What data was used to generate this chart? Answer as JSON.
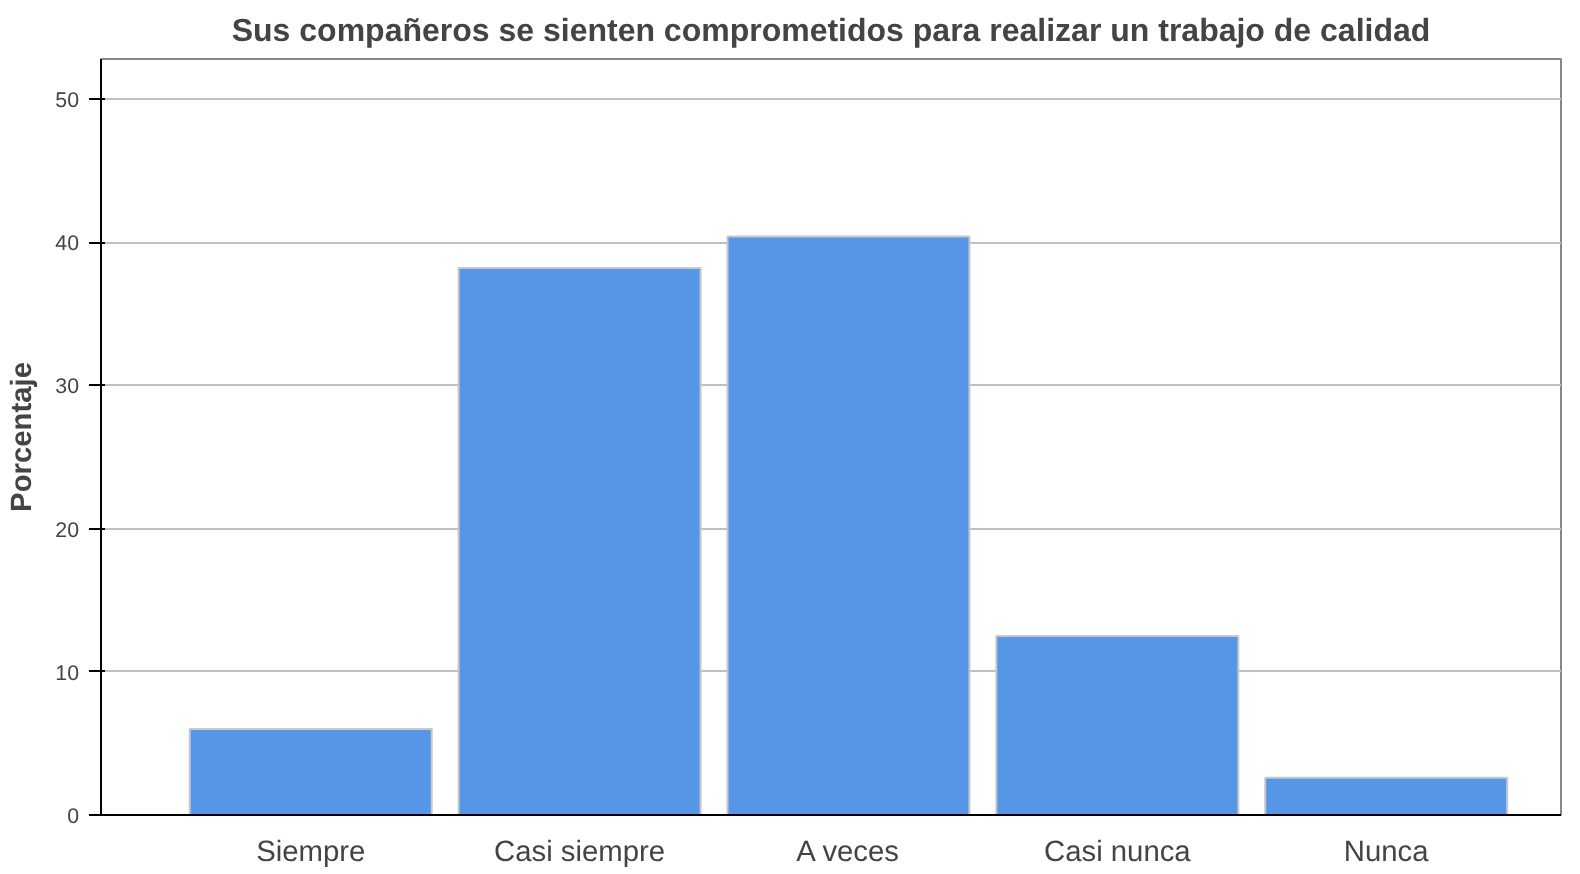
{
  "chart_data": {
    "type": "bar",
    "title": "Sus compañeros se sienten comprometidos para realizar un trabajo de calidad",
    "ylabel": "Porcentaje",
    "categories": [
      "Siempre",
      "Casi siempre",
      "A veces",
      "Casi nunca",
      "Nunca"
    ],
    "values": [
      6.0,
      38.2,
      40.4,
      12.5,
      2.6
    ],
    "color": "#5596e6",
    "ylim": [
      0,
      52.8
    ],
    "yticks": [
      0,
      10,
      20,
      30,
      40,
      50
    ],
    "grid": "y"
  }
}
